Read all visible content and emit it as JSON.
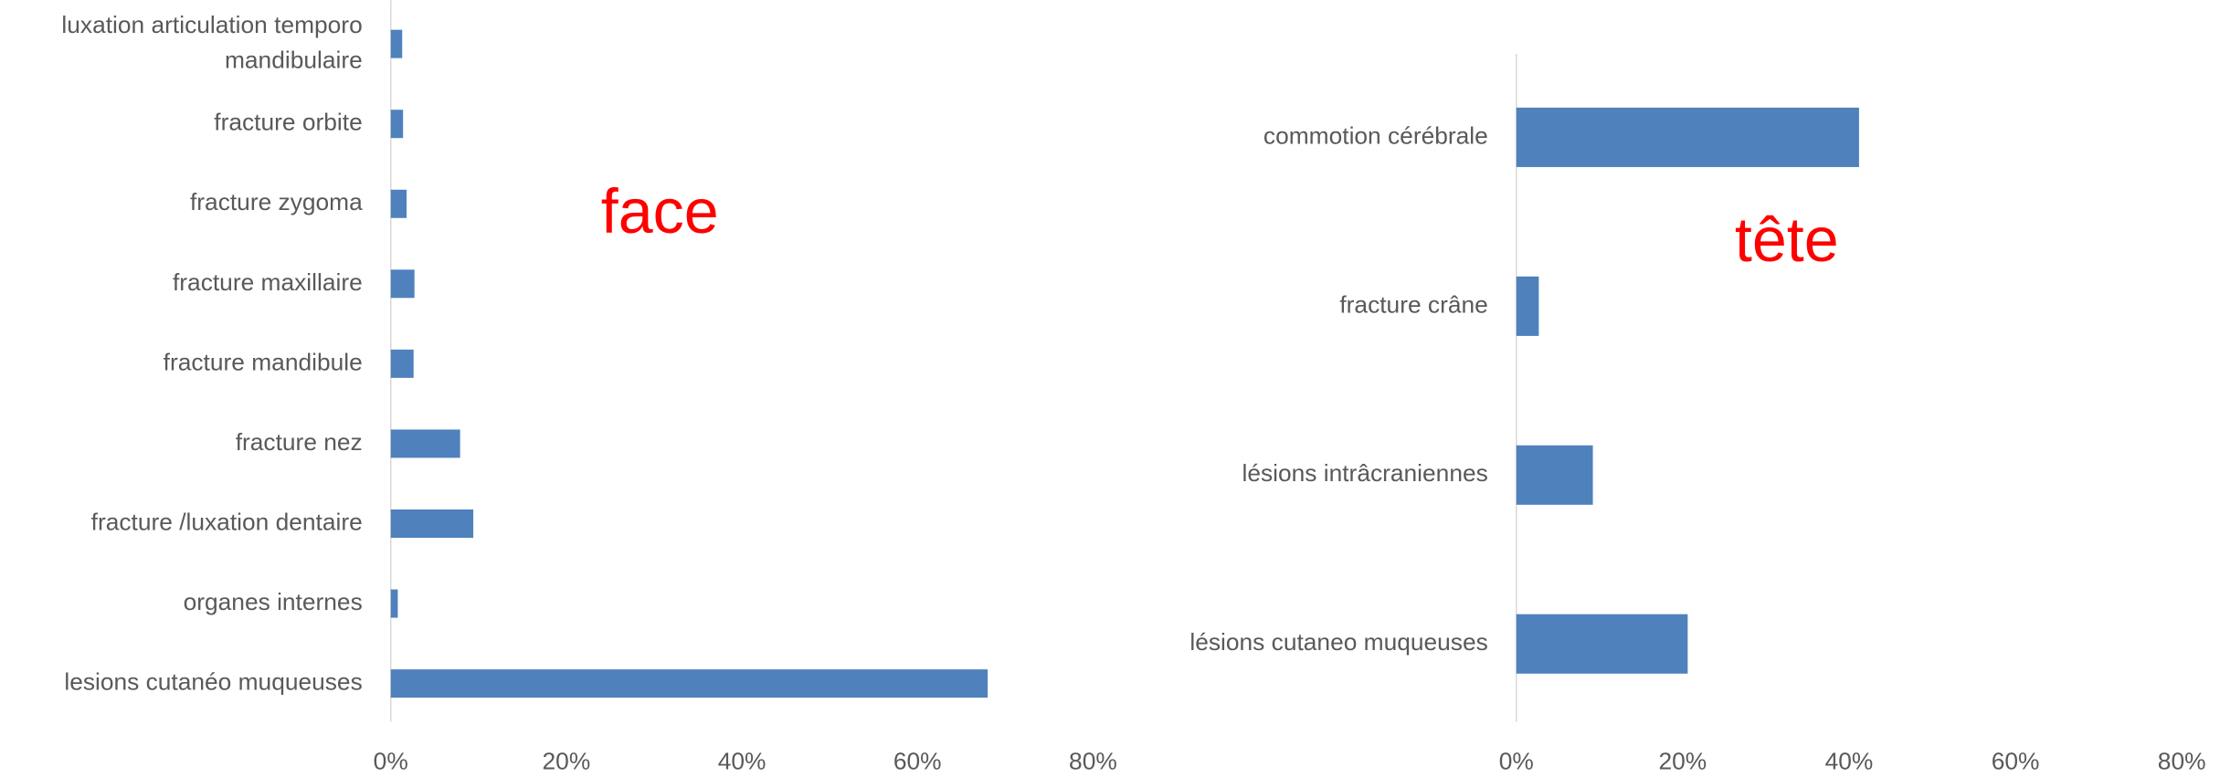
{
  "chart_data": [
    {
      "type": "barh",
      "annotation": "face",
      "categories": [
        "luxation articulation temporo mandibulaire",
        "fracture orbite",
        "fracture zygoma",
        "fracture maxillaire",
        "fracture mandibule",
        "fracture nez",
        "fracture /luxation dentaire",
        "organes internes",
        "lesions cutanéo muqueuses"
      ],
      "values": [
        1.3,
        1.4,
        1.8,
        2.7,
        2.6,
        7.9,
        9.4,
        0.8,
        68
      ],
      "color": "#4f81bd",
      "xlim": [
        0,
        80
      ],
      "xticks": [
        {
          "value": 0,
          "label": "0%"
        },
        {
          "value": 20,
          "label": "20%"
        },
        {
          "value": 40,
          "label": "40%"
        },
        {
          "value": 60,
          "label": "60%"
        },
        {
          "value": 80,
          "label": "80%"
        }
      ]
    },
    {
      "type": "barh",
      "annotation": "tête",
      "categories": [
        "commotion cérébrale",
        "fracture crâne",
        "lésions intrâcraniennes",
        "lésions cutaneo muqueuses"
      ],
      "values": [
        41.2,
        2.7,
        9.2,
        20.6
      ],
      "color": "#4f81bd",
      "xlim": [
        0,
        80
      ],
      "xticks": [
        {
          "value": 0,
          "label": "0%"
        },
        {
          "value": 20,
          "label": "20%"
        },
        {
          "value": 40,
          "label": "40%"
        },
        {
          "value": 60,
          "label": "60%"
        },
        {
          "value": 80,
          "label": "80%"
        }
      ]
    }
  ]
}
